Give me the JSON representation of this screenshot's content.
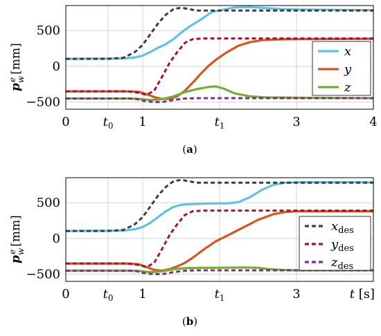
{
  "colors": {
    "x": "#5bc3ea",
    "y": "#d9531e",
    "z": "#77ac30",
    "x_des": "#3d3d3d",
    "y_des": "#a2142f",
    "z_des": "#7e2f8e"
  },
  "chart_data": [
    {
      "type": "line",
      "caption": "(a)",
      "ylabel": "p_w^e [mm]",
      "xlim": [
        0,
        4
      ],
      "ylim": [
        -600,
        850
      ],
      "grid": true,
      "legend_position": "right",
      "x_ticks": [
        0,
        0.55,
        1,
        2,
        3,
        4
      ],
      "x_tick_labels": [
        "0",
        "t0",
        "1",
        "t1",
        "3",
        "4"
      ],
      "y_ticks": [
        -500,
        0,
        500
      ],
      "y_tick_labels": [
        "−500",
        "0",
        "500"
      ],
      "series": [
        {
          "name": "x_des",
          "style": "dashed",
          "color_key": "x_des",
          "points": [
            [
              0,
              105
            ],
            [
              0.55,
              105
            ],
            [
              0.75,
              120
            ],
            [
              0.9,
              200
            ],
            [
              1.0,
              300
            ],
            [
              1.1,
              450
            ],
            [
              1.2,
              600
            ],
            [
              1.3,
              720
            ],
            [
              1.4,
              800
            ],
            [
              1.5,
              820
            ],
            [
              1.6,
              800
            ],
            [
              1.7,
              780
            ],
            [
              1.8,
              780
            ],
            [
              2.0,
              780
            ],
            [
              4.0,
              780
            ]
          ]
        },
        {
          "name": "y_des",
          "style": "dashed",
          "color_key": "y_des",
          "points": [
            [
              0,
              -350
            ],
            [
              0.8,
              -350
            ],
            [
              0.95,
              -370
            ],
            [
              1.05,
              -400
            ],
            [
              1.15,
              -340
            ],
            [
              1.25,
              -150
            ],
            [
              1.35,
              50
            ],
            [
              1.45,
              200
            ],
            [
              1.55,
              330
            ],
            [
              1.65,
              380
            ],
            [
              1.8,
              390
            ],
            [
              4.0,
              390
            ]
          ]
        },
        {
          "name": "z_des",
          "style": "dashed",
          "color_key": "z_des",
          "points": [
            [
              0,
              -450
            ],
            [
              0.9,
              -450
            ],
            [
              1.0,
              -480
            ],
            [
              1.1,
              -495
            ],
            [
              1.25,
              -500
            ],
            [
              1.4,
              -470
            ],
            [
              1.55,
              -450
            ],
            [
              1.7,
              -445
            ],
            [
              4.0,
              -445
            ]
          ]
        },
        {
          "name": "x",
          "legend": "x",
          "style": "solid",
          "color_key": "x",
          "points": [
            [
              0,
              105
            ],
            [
              0.75,
              110
            ],
            [
              0.9,
              125
            ],
            [
              1.0,
              150
            ],
            [
              1.1,
              200
            ],
            [
              1.2,
              260
            ],
            [
              1.3,
              310
            ],
            [
              1.4,
              380
            ],
            [
              1.5,
              470
            ],
            [
              1.6,
              550
            ],
            [
              1.75,
              650
            ],
            [
              1.9,
              760
            ],
            [
              2.0,
              780
            ],
            [
              2.2,
              825
            ],
            [
              2.4,
              830
            ],
            [
              2.6,
              815
            ],
            [
              2.8,
              800
            ],
            [
              3.0,
              795
            ],
            [
              3.5,
              790
            ],
            [
              4.0,
              785
            ]
          ]
        },
        {
          "name": "y",
          "legend": "y",
          "style": "solid",
          "color_key": "y",
          "points": [
            [
              0,
              -350
            ],
            [
              0.8,
              -350
            ],
            [
              0.95,
              -355
            ],
            [
              1.05,
              -390
            ],
            [
              1.15,
              -430
            ],
            [
              1.25,
              -455
            ],
            [
              1.35,
              -455
            ],
            [
              1.45,
              -420
            ],
            [
              1.55,
              -340
            ],
            [
              1.65,
              -230
            ],
            [
              1.75,
              -110
            ],
            [
              1.85,
              0
            ],
            [
              1.95,
              90
            ],
            [
              2.1,
              200
            ],
            [
              2.25,
              290
            ],
            [
              2.4,
              340
            ],
            [
              2.55,
              365
            ],
            [
              2.7,
              375
            ],
            [
              3.0,
              380
            ],
            [
              4.0,
              385
            ]
          ]
        },
        {
          "name": "z",
          "legend": "z",
          "style": "solid",
          "color_key": "z",
          "points": [
            [
              0,
              -450
            ],
            [
              0.8,
              -450
            ],
            [
              0.95,
              -455
            ],
            [
              1.1,
              -470
            ],
            [
              1.25,
              -460
            ],
            [
              1.4,
              -420
            ],
            [
              1.55,
              -360
            ],
            [
              1.7,
              -320
            ],
            [
              1.85,
              -290
            ],
            [
              1.95,
              -280
            ],
            [
              2.05,
              -310
            ],
            [
              2.2,
              -380
            ],
            [
              2.4,
              -420
            ],
            [
              2.6,
              -435
            ],
            [
              3.0,
              -440
            ],
            [
              4.0,
              -445
            ]
          ]
        }
      ]
    },
    {
      "type": "line",
      "caption": "(b)",
      "ylabel": "p_w^e [mm]",
      "xlabel": "t [s]",
      "xlim": [
        0,
        4
      ],
      "ylim": [
        -600,
        850
      ],
      "grid": true,
      "legend_position": "right",
      "x_ticks": [
        0,
        0.55,
        1,
        2,
        3,
        4
      ],
      "x_tick_labels": [
        "0",
        "t0",
        "1",
        "t1",
        "3",
        "t [s]"
      ],
      "y_ticks": [
        -500,
        0,
        500
      ],
      "y_tick_labels": [
        "−500",
        "0",
        "500"
      ],
      "series": [
        {
          "name": "x_des",
          "legend": "x_des",
          "style": "dashed",
          "color_key": "x_des",
          "points": [
            [
              0,
              105
            ],
            [
              0.55,
              105
            ],
            [
              0.75,
              120
            ],
            [
              0.9,
              200
            ],
            [
              1.0,
              300
            ],
            [
              1.1,
              450
            ],
            [
              1.2,
              600
            ],
            [
              1.3,
              720
            ],
            [
              1.4,
              800
            ],
            [
              1.5,
              820
            ],
            [
              1.6,
              800
            ],
            [
              1.7,
              780
            ],
            [
              1.8,
              780
            ],
            [
              2.0,
              780
            ],
            [
              4.0,
              780
            ]
          ]
        },
        {
          "name": "y_des",
          "legend": "y_des",
          "style": "dashed",
          "color_key": "y_des",
          "points": [
            [
              0,
              -350
            ],
            [
              0.8,
              -350
            ],
            [
              0.95,
              -370
            ],
            [
              1.05,
              -400
            ],
            [
              1.15,
              -340
            ],
            [
              1.25,
              -150
            ],
            [
              1.35,
              50
            ],
            [
              1.45,
              200
            ],
            [
              1.55,
              330
            ],
            [
              1.65,
              380
            ],
            [
              1.8,
              390
            ],
            [
              4.0,
              390
            ]
          ]
        },
        {
          "name": "z_des",
          "legend": "z_des",
          "style": "dashed",
          "color_key": "z_des",
          "points": [
            [
              0,
              -450
            ],
            [
              0.9,
              -450
            ],
            [
              1.0,
              -480
            ],
            [
              1.1,
              -495
            ],
            [
              1.25,
              -500
            ],
            [
              1.4,
              -470
            ],
            [
              1.55,
              -450
            ],
            [
              1.7,
              -445
            ],
            [
              4.0,
              -445
            ]
          ]
        },
        {
          "name": "x",
          "style": "solid",
          "color_key": "x",
          "points": [
            [
              0,
              105
            ],
            [
              0.75,
              110
            ],
            [
              0.9,
              130
            ],
            [
              1.0,
              160
            ],
            [
              1.1,
              220
            ],
            [
              1.2,
              300
            ],
            [
              1.3,
              380
            ],
            [
              1.4,
              440
            ],
            [
              1.5,
              470
            ],
            [
              1.6,
              480
            ],
            [
              1.75,
              485
            ],
            [
              1.9,
              490
            ],
            [
              2.0,
              490
            ],
            [
              2.1,
              490
            ],
            [
              2.25,
              510
            ],
            [
              2.4,
              580
            ],
            [
              2.55,
              680
            ],
            [
              2.7,
              750
            ],
            [
              2.85,
              780
            ],
            [
              3.0,
              785
            ],
            [
              4.0,
              785
            ]
          ]
        },
        {
          "name": "y",
          "style": "solid",
          "color_key": "y",
          "points": [
            [
              0,
              -350
            ],
            [
              0.8,
              -350
            ],
            [
              0.95,
              -360
            ],
            [
              1.05,
              -400
            ],
            [
              1.15,
              -440
            ],
            [
              1.25,
              -450
            ],
            [
              1.35,
              -430
            ],
            [
              1.45,
              -390
            ],
            [
              1.55,
              -340
            ],
            [
              1.65,
              -270
            ],
            [
              1.8,
              -150
            ],
            [
              1.95,
              -40
            ],
            [
              2.1,
              40
            ],
            [
              2.3,
              150
            ],
            [
              2.5,
              260
            ],
            [
              2.7,
              340
            ],
            [
              2.85,
              370
            ],
            [
              3.0,
              380
            ],
            [
              4.0,
              380
            ]
          ]
        },
        {
          "name": "z",
          "style": "solid",
          "color_key": "z",
          "points": [
            [
              0,
              -450
            ],
            [
              0.8,
              -450
            ],
            [
              0.95,
              -455
            ],
            [
              1.1,
              -470
            ],
            [
              1.25,
              -460
            ],
            [
              1.4,
              -430
            ],
            [
              1.55,
              -415
            ],
            [
              1.75,
              -410
            ],
            [
              2.0,
              -410
            ],
            [
              2.3,
              -405
            ],
            [
              2.5,
              -410
            ],
            [
              2.65,
              -430
            ],
            [
              2.8,
              -440
            ],
            [
              3.0,
              -445
            ],
            [
              4.0,
              -445
            ]
          ]
        }
      ]
    }
  ]
}
